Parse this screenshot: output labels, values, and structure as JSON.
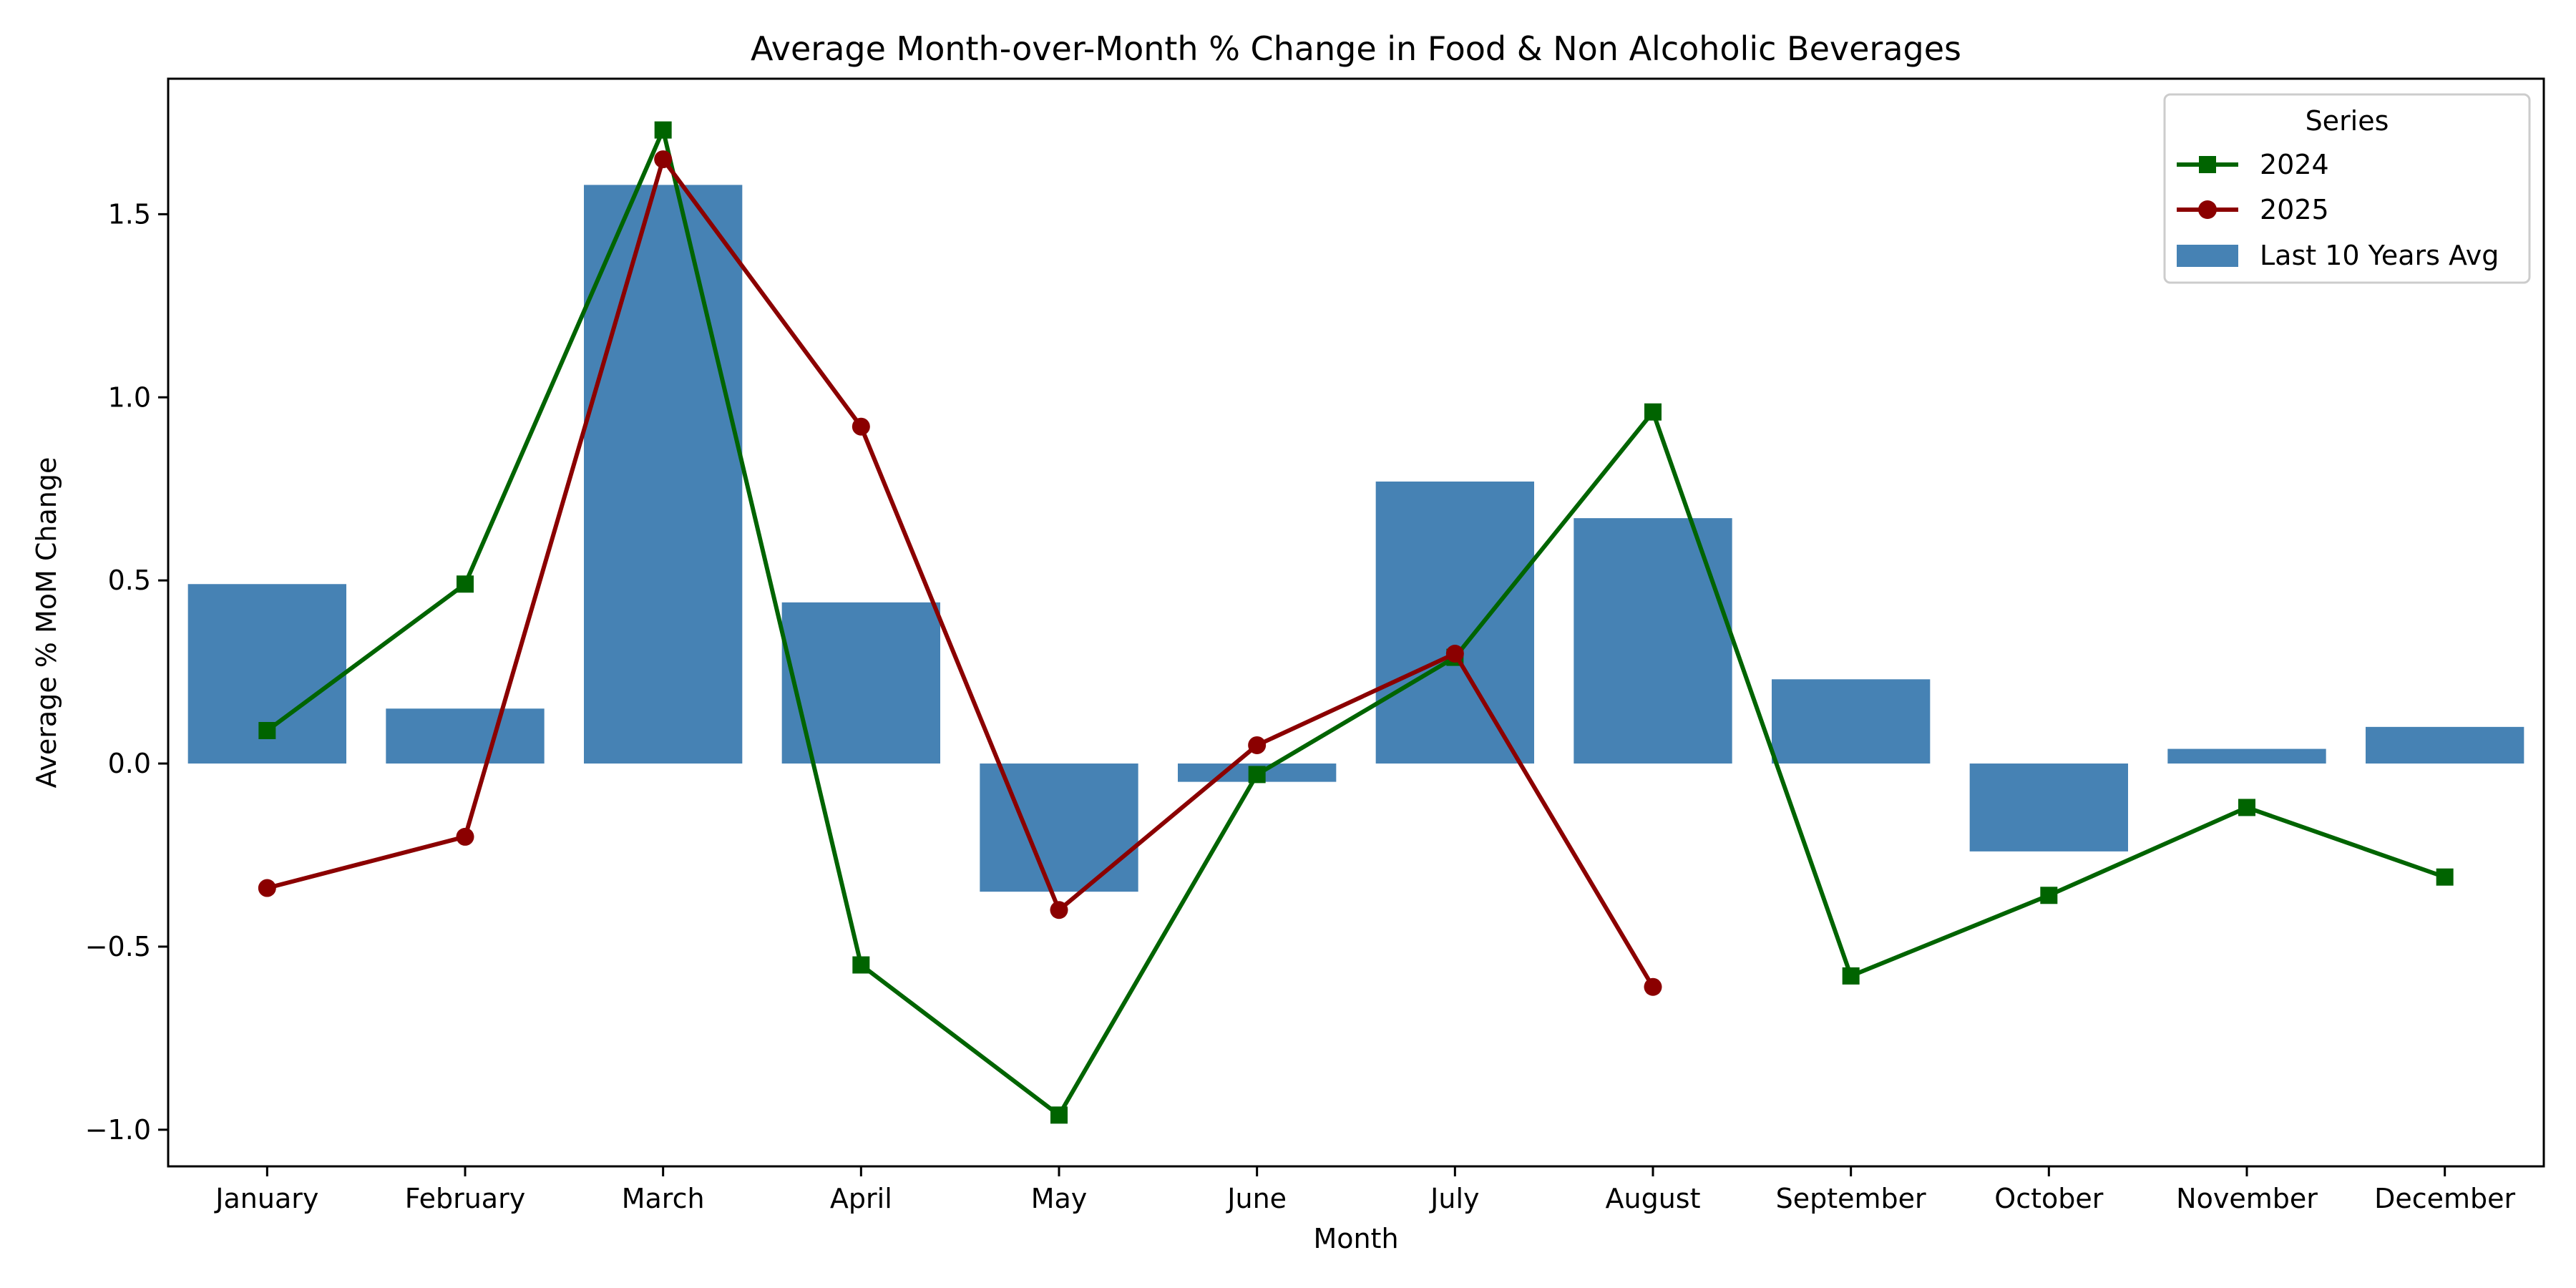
{
  "chart_data": {
    "type": "bar+line",
    "title": "Average Month-over-Month % Change in Food & Non Alcoholic Beverages",
    "xlabel": "Month",
    "ylabel": "Average % MoM Change",
    "ylim": [
      -1.1,
      1.87
    ],
    "yticks": [
      -1.0,
      -0.5,
      0.0,
      0.5,
      1.0,
      1.5
    ],
    "ytick_labels": [
      "−1.0",
      "−0.5",
      "0.0",
      "0.5",
      "1.0",
      "1.5"
    ],
    "categories": [
      "January",
      "February",
      "March",
      "April",
      "May",
      "June",
      "July",
      "August",
      "September",
      "October",
      "November",
      "December"
    ],
    "bars": {
      "name": "Last 10 Years Avg",
      "color": "#4682b4",
      "values": [
        0.49,
        0.15,
        1.58,
        0.44,
        -0.35,
        -0.05,
        0.77,
        0.67,
        0.23,
        -0.24,
        0.04,
        0.1
      ]
    },
    "series": [
      {
        "name": "2024",
        "color": "#006400",
        "marker": "square",
        "values": [
          0.09,
          0.49,
          1.73,
          -0.55,
          -0.96,
          -0.03,
          0.29,
          0.96,
          -0.58,
          -0.36,
          -0.12,
          -0.31
        ]
      },
      {
        "name": "2025",
        "color": "#8b0000",
        "marker": "circle",
        "values": [
          -0.34,
          -0.2,
          1.65,
          0.92,
          -0.4,
          0.05,
          0.3,
          -0.61,
          null,
          null,
          null,
          null
        ]
      }
    ],
    "legend": {
      "title": "Series",
      "position": "top-right",
      "entries": [
        "2024",
        "2025",
        "Last 10 Years Avg"
      ]
    }
  }
}
